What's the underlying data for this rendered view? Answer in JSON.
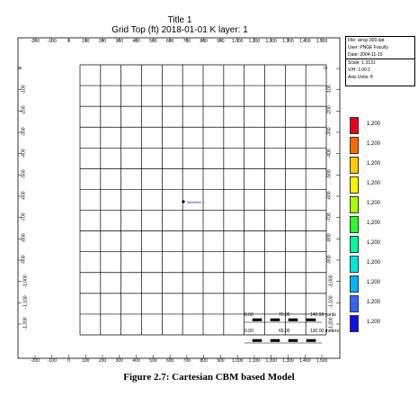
{
  "header": {
    "title": "Title 1",
    "subtitle": "Grid Top (ft) 2018-01-01     K layer: 1"
  },
  "info_box": {
    "file": "File: array-300.dat",
    "user": "User: PNGE Faculty",
    "date": "Date: 2004-11-15",
    "scale": "Scale: 1:3131",
    "vh": "V/H: 1.00:1",
    "axis_units": "Axis Units: ft"
  },
  "axes": {
    "x_ticks": [
      "-200",
      "-100",
      "0",
      "100",
      "200",
      "300",
      "400",
      "500",
      "600",
      "700",
      "800",
      "900",
      "1,000",
      "1,100",
      "1,200",
      "1,300",
      "1,400",
      "1,500"
    ],
    "y_left_ticks": [
      "0",
      "-100",
      "-200",
      "-300",
      "-400",
      "-500",
      "-600",
      "-700",
      "-800",
      "-900",
      "-1,000",
      "-1,100",
      "-1,200"
    ],
    "y_right_ticks": [
      "0",
      "-100",
      "-200",
      "-300",
      "-400",
      "-500",
      "-600",
      "-700",
      "-800",
      "-900",
      "-1,000",
      "-1,100",
      "-1,200"
    ]
  },
  "legend": {
    "entries": [
      {
        "label": "1,200",
        "color": "#e8001a"
      },
      {
        "label": "1,200",
        "color": "#ff6a00"
      },
      {
        "label": "1,200",
        "color": "#ffc800"
      },
      {
        "label": "1,200",
        "color": "#f5f500"
      },
      {
        "label": "1,200",
        "color": "#a8ff00"
      },
      {
        "label": "1,200",
        "color": "#2bff2b"
      },
      {
        "label": "1,200",
        "color": "#00ff9a"
      },
      {
        "label": "1,200",
        "color": "#00e6e6"
      },
      {
        "label": "1,200",
        "color": "#00b4ff"
      },
      {
        "label": "1,200",
        "color": "#3066ff"
      },
      {
        "label": "1,200",
        "color": "#1010ee"
      }
    ]
  },
  "well": {
    "label": "NewWell 1"
  },
  "scale_bar": {
    "yards": [
      "0.00",
      "70.00",
      "140.00 yards"
    ],
    "meters": [
      "0.00",
      "65.00",
      "130.00 meters"
    ]
  },
  "caption": "Figure 2.7: Cartesian CBM based Model"
}
